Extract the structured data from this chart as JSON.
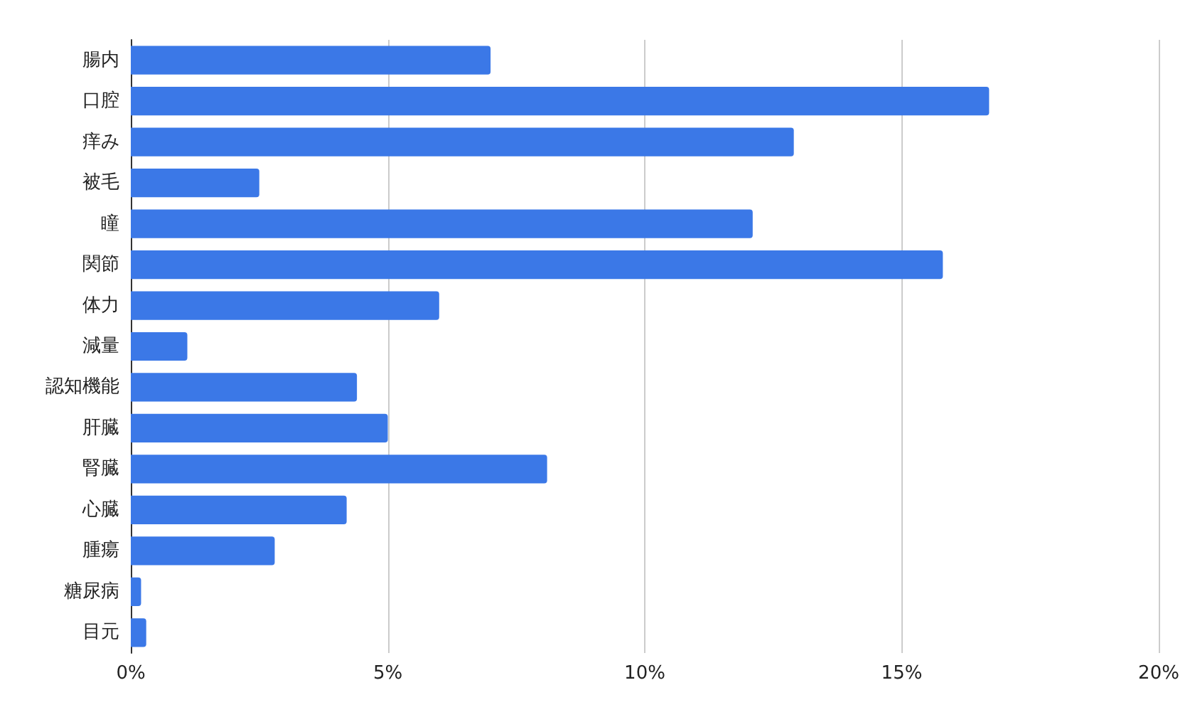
{
  "chart_data": {
    "type": "bar",
    "orientation": "horizontal",
    "categories": [
      "腸内",
      "口腔",
      "痒み",
      "被毛",
      "瞳",
      "関節",
      "体力",
      "減量",
      "認知機能",
      "肝臓",
      "腎臓",
      "心臓",
      "腫瘍",
      "糖尿病",
      "目元"
    ],
    "values": [
      7.0,
      16.7,
      12.9,
      2.5,
      12.1,
      15.8,
      6.0,
      1.1,
      4.4,
      5.0,
      8.1,
      4.2,
      2.8,
      0.2,
      0.3
    ],
    "color": "#3b78e7",
    "xlim": [
      0,
      20
    ],
    "xticks": [
      {
        "value": 0,
        "label": "0%"
      },
      {
        "value": 5,
        "label": "5%"
      },
      {
        "value": 10,
        "label": "10%"
      },
      {
        "value": 15,
        "label": "15%"
      },
      {
        "value": 20,
        "label": "20%"
      }
    ],
    "grid": "x"
  }
}
